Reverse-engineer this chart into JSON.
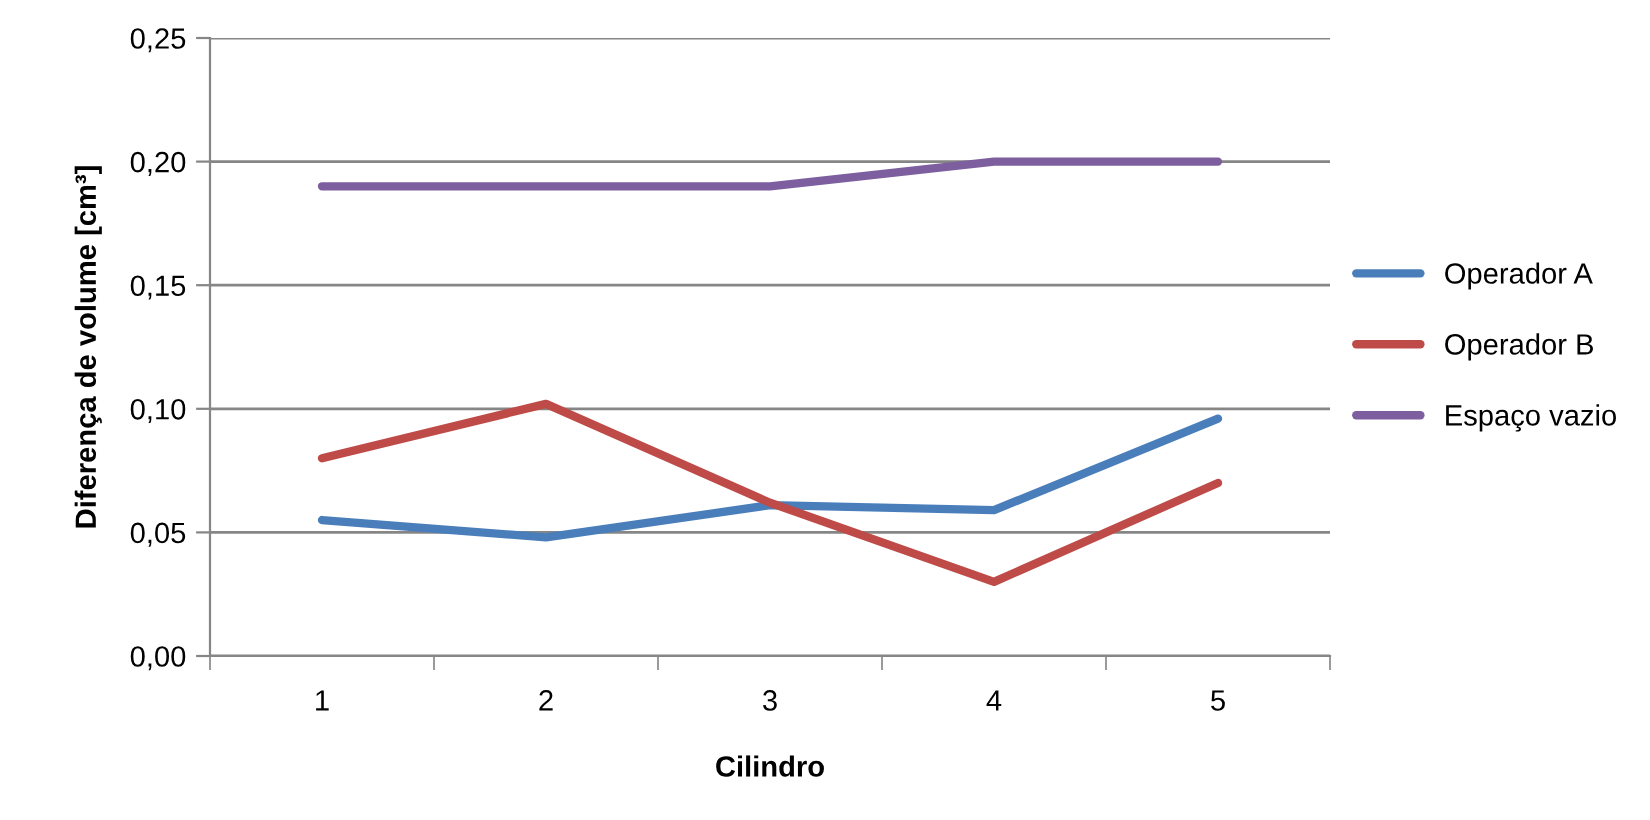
{
  "chart_data": {
    "type": "line",
    "xlabel": "Cilindro",
    "ylabel": "Diferença de volume [cm³]",
    "categories": [
      "1",
      "2",
      "3",
      "4",
      "5"
    ],
    "series": [
      {
        "name": "Operador A",
        "color": "#4a7ebb",
        "values": [
          0.055,
          0.048,
          0.061,
          0.059,
          0.096
        ]
      },
      {
        "name": "Operador B",
        "color": "#be4b48",
        "values": [
          0.08,
          0.102,
          0.062,
          0.03,
          0.07
        ]
      },
      {
        "name": "Espaço vazio",
        "color": "#7d5fa0",
        "values": [
          0.19,
          0.19,
          0.19,
          0.2,
          0.2
        ]
      }
    ],
    "ylim": [
      0,
      0.25
    ],
    "yticks": [
      {
        "value": 0,
        "label": "0,00"
      },
      {
        "value": 0.05,
        "label": "0,05"
      },
      {
        "value": 0.1,
        "label": "0,10"
      },
      {
        "value": 0.15,
        "label": "0,15"
      },
      {
        "value": 0.2,
        "label": "0,20"
      },
      {
        "value": 0.25,
        "label": "0,25"
      }
    ],
    "grid": "y",
    "legend": "right",
    "marker": "none",
    "line_style": "solid"
  }
}
